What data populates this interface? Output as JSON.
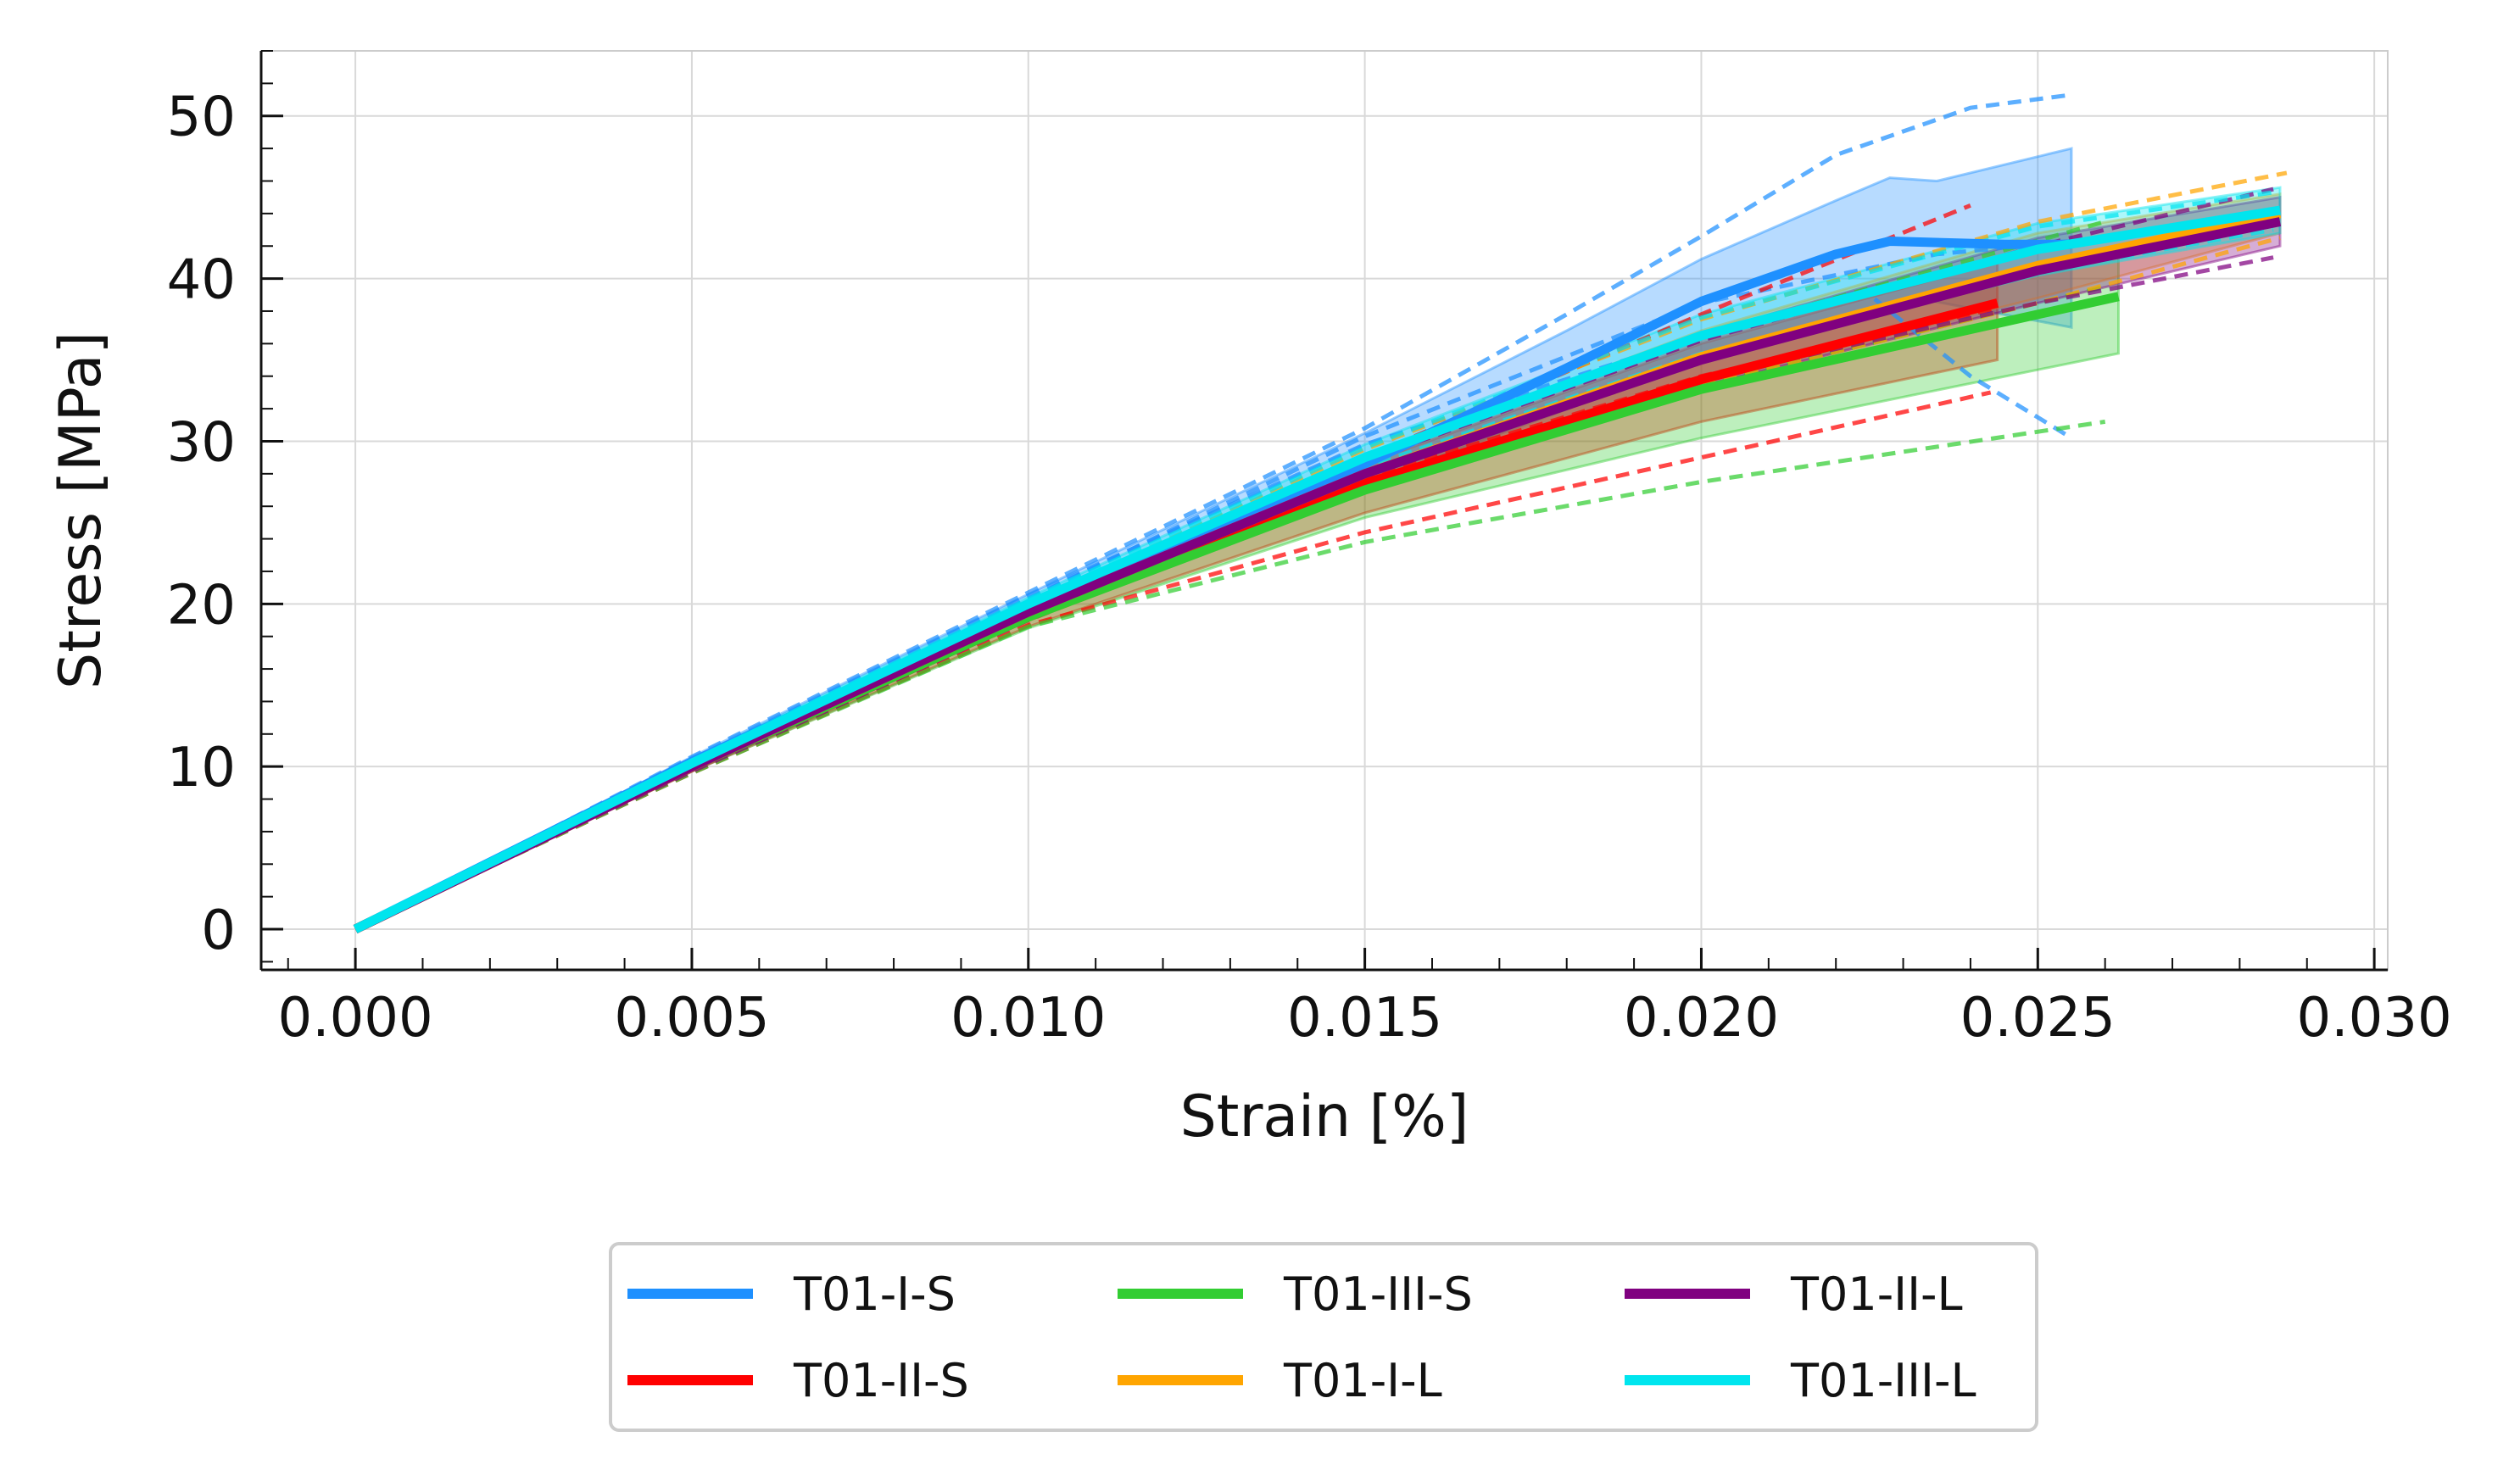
{
  "chart_data": {
    "type": "line",
    "title": "",
    "xlabel": "Strain [%]",
    "ylabel": "Stress [MPa]",
    "xlim": [
      -0.0014,
      0.0302
    ],
    "ylim": [
      -2.5,
      54
    ],
    "xticks": [
      "0.000",
      "0.005",
      "0.010",
      "0.015",
      "0.020",
      "0.025",
      "0.030"
    ],
    "yticks": [
      "0",
      "10",
      "20",
      "30",
      "40",
      "50"
    ],
    "grid": true,
    "legend_position": "bottom-center",
    "series": [
      {
        "name": "T01-I-S",
        "color": "#1e90ff",
        "mean": [
          [
            0,
            0
          ],
          [
            0.005,
            10.3
          ],
          [
            0.01,
            19.8
          ],
          [
            0.015,
            28.6
          ],
          [
            0.018,
            34.5
          ],
          [
            0.02,
            38.6
          ],
          [
            0.022,
            41.5
          ],
          [
            0.0228,
            42.3
          ],
          [
            0.0245,
            42.1
          ],
          [
            0.0255,
            42.1
          ]
        ],
        "band_upper": [
          [
            0,
            0
          ],
          [
            0.005,
            10.6
          ],
          [
            0.01,
            20.6
          ],
          [
            0.015,
            30.5
          ],
          [
            0.018,
            36.8
          ],
          [
            0.02,
            41.2
          ],
          [
            0.022,
            44.8
          ],
          [
            0.0228,
            46.2
          ],
          [
            0.0235,
            46.0
          ],
          [
            0.0255,
            48.0
          ]
        ],
        "band_lower": [
          [
            0,
            0
          ],
          [
            0.005,
            10.0
          ],
          [
            0.01,
            19.2
          ],
          [
            0.015,
            27.4
          ],
          [
            0.02,
            35.0
          ],
          [
            0.0232,
            38.8
          ],
          [
            0.0255,
            37.0
          ]
        ],
        "specimens": [
          [
            [
              0,
              0
            ],
            [
              0.005,
              10.6
            ],
            [
              0.01,
              20.7
            ],
            [
              0.015,
              30.8
            ],
            [
              0.018,
              37.8
            ],
            [
              0.02,
              42.6
            ],
            [
              0.022,
              47.6
            ],
            [
              0.024,
              50.5
            ],
            [
              0.0255,
              51.3
            ]
          ],
          [
            [
              0,
              0
            ],
            [
              0.005,
              10.4
            ],
            [
              0.01,
              20.5
            ],
            [
              0.015,
              29.8
            ],
            [
              0.02,
              36.5
            ],
            [
              0.0225,
              39.0
            ],
            [
              0.024,
              34.0
            ],
            [
              0.0255,
              30.2
            ]
          ],
          [
            [
              0,
              0
            ],
            [
              0.005,
              10.2
            ],
            [
              0.01,
              20.3
            ],
            [
              0.015,
              30.3
            ],
            [
              0.02,
              38.5
            ],
            [
              0.0235,
              41.5
            ],
            [
              0.0255,
              42.3
            ]
          ]
        ]
      },
      {
        "name": "T01-II-S",
        "color": "#ff0000",
        "mean": [
          [
            0,
            0
          ],
          [
            0.005,
            10.0
          ],
          [
            0.01,
            19.2
          ],
          [
            0.015,
            27.4
          ],
          [
            0.02,
            33.8
          ],
          [
            0.0244,
            38.5
          ]
        ],
        "band_upper": [
          [
            0,
            0
          ],
          [
            0.005,
            10.3
          ],
          [
            0.01,
            19.8
          ],
          [
            0.015,
            28.6
          ],
          [
            0.02,
            36.0
          ],
          [
            0.0244,
            41.0
          ]
        ],
        "band_lower": [
          [
            0,
            0
          ],
          [
            0.005,
            9.7
          ],
          [
            0.01,
            18.6
          ],
          [
            0.015,
            25.6
          ],
          [
            0.02,
            31.2
          ],
          [
            0.0244,
            35.0
          ]
        ],
        "specimens": [
          [
            [
              0,
              0
            ],
            [
              0.005,
              10.0
            ],
            [
              0.01,
              19.8
            ],
            [
              0.015,
              29.0
            ],
            [
              0.02,
              37.8
            ],
            [
              0.024,
              44.5
            ]
          ],
          [
            [
              0,
              0
            ],
            [
              0.005,
              9.6
            ],
            [
              0.01,
              18.7
            ],
            [
              0.015,
              24.4
            ],
            [
              0.02,
              29.0
            ],
            [
              0.0243,
              33.0
            ]
          ],
          [
            [
              0,
              0
            ],
            [
              0.005,
              9.8
            ],
            [
              0.01,
              19.2
            ],
            [
              0.015,
              27.8
            ],
            [
              0.02,
              34.0
            ],
            [
              0.0244,
              38.2
            ]
          ]
        ]
      },
      {
        "name": "T01-III-S",
        "color": "#32cd32",
        "mean": [
          [
            0,
            0
          ],
          [
            0.005,
            10.0
          ],
          [
            0.01,
            19.2
          ],
          [
            0.015,
            27.0
          ],
          [
            0.02,
            33.2
          ],
          [
            0.0262,
            38.9
          ]
        ],
        "band_upper": [
          [
            0,
            0
          ],
          [
            0.005,
            10.3
          ],
          [
            0.01,
            19.7
          ],
          [
            0.015,
            28.2
          ],
          [
            0.02,
            35.2
          ],
          [
            0.0262,
            41.5
          ]
        ],
        "band_lower": [
          [
            0,
            0
          ],
          [
            0.005,
            9.7
          ],
          [
            0.01,
            18.5
          ],
          [
            0.015,
            25.3
          ],
          [
            0.02,
            30.2
          ],
          [
            0.0262,
            35.4
          ]
        ],
        "specimens": [
          [
            [
              0,
              0
            ],
            [
              0.005,
              10.1
            ],
            [
              0.01,
              19.8
            ],
            [
              0.015,
              28.8
            ],
            [
              0.02,
              36.5
            ],
            [
              0.026,
              43.5
            ]
          ],
          [
            [
              0,
              0
            ],
            [
              0.005,
              9.6
            ],
            [
              0.01,
              18.6
            ],
            [
              0.015,
              23.8
            ],
            [
              0.02,
              27.5
            ],
            [
              0.026,
              31.2
            ]
          ],
          [
            [
              0,
              0
            ],
            [
              0.005,
              9.9
            ],
            [
              0.01,
              19.2
            ],
            [
              0.015,
              27.5
            ],
            [
              0.02,
              33.5
            ],
            [
              0.026,
              39.5
            ]
          ]
        ]
      },
      {
        "name": "T01-I-L",
        "color": "#ffa500",
        "mean": [
          [
            0,
            0
          ],
          [
            0.005,
            10.0
          ],
          [
            0.01,
            19.5
          ],
          [
            0.015,
            28.0
          ],
          [
            0.02,
            35.2
          ],
          [
            0.025,
            40.8
          ],
          [
            0.0286,
            44.0
          ]
        ],
        "band_upper": [
          [
            0,
            0
          ],
          [
            0.005,
            10.3
          ],
          [
            0.01,
            20.0
          ],
          [
            0.015,
            29.0
          ],
          [
            0.02,
            36.8
          ],
          [
            0.025,
            42.8
          ],
          [
            0.0286,
            45.2
          ]
        ],
        "band_lower": [
          [
            0,
            0
          ],
          [
            0.005,
            9.7
          ],
          [
            0.01,
            19.0
          ],
          [
            0.015,
            27.0
          ],
          [
            0.02,
            33.6
          ],
          [
            0.025,
            38.8
          ],
          [
            0.0286,
            42.8
          ]
        ],
        "specimens": [
          [
            [
              0,
              0
            ],
            [
              0.005,
              10.2
            ],
            [
              0.01,
              20.0
            ],
            [
              0.015,
              29.5
            ],
            [
              0.02,
              37.5
            ],
            [
              0.025,
              43.5
            ],
            [
              0.0287,
              46.5
            ]
          ],
          [
            [
              0,
              0
            ],
            [
              0.005,
              9.8
            ],
            [
              0.01,
              19.0
            ],
            [
              0.015,
              27.0
            ],
            [
              0.02,
              33.5
            ],
            [
              0.025,
              38.5
            ],
            [
              0.0286,
              42.5
            ]
          ]
        ]
      },
      {
        "name": "T01-II-L",
        "color": "#800080",
        "mean": [
          [
            0,
            0
          ],
          [
            0.005,
            10.0
          ],
          [
            0.01,
            19.5
          ],
          [
            0.015,
            28.0
          ],
          [
            0.02,
            35.0
          ],
          [
            0.025,
            40.5
          ],
          [
            0.0286,
            43.5
          ]
        ],
        "band_upper": [
          [
            0,
            0
          ],
          [
            0.005,
            10.3
          ],
          [
            0.01,
            20.0
          ],
          [
            0.015,
            29.0
          ],
          [
            0.02,
            36.6
          ],
          [
            0.025,
            42.5
          ],
          [
            0.0286,
            45.0
          ]
        ],
        "band_lower": [
          [
            0,
            0
          ],
          [
            0.005,
            9.7
          ],
          [
            0.01,
            19.0
          ],
          [
            0.015,
            27.0
          ],
          [
            0.02,
            33.4
          ],
          [
            0.025,
            38.5
          ],
          [
            0.0286,
            42.0
          ]
        ],
        "specimens": [
          [
            [
              0,
              0
            ],
            [
              0.005,
              10.1
            ],
            [
              0.01,
              19.8
            ],
            [
              0.015,
              28.8
            ],
            [
              0.02,
              36.2
            ],
            [
              0.025,
              42.0
            ],
            [
              0.0285,
              45.5
            ]
          ],
          [
            [
              0,
              0
            ],
            [
              0.005,
              9.7
            ],
            [
              0.01,
              19.0
            ],
            [
              0.015,
              27.2
            ],
            [
              0.02,
              33.8
            ],
            [
              0.025,
              38.5
            ],
            [
              0.0285,
              41.3
            ]
          ]
        ]
      },
      {
        "name": "T01-III-L",
        "color": "#00e5ee",
        "mean": [
          [
            0,
            0
          ],
          [
            0.005,
            10.2
          ],
          [
            0.01,
            20.0
          ],
          [
            0.015,
            29.0
          ],
          [
            0.02,
            36.5
          ],
          [
            0.025,
            41.8
          ],
          [
            0.0286,
            44.2
          ]
        ],
        "band_upper": [
          [
            0,
            0
          ],
          [
            0.005,
            10.5
          ],
          [
            0.01,
            20.4
          ],
          [
            0.015,
            29.8
          ],
          [
            0.02,
            37.8
          ],
          [
            0.025,
            43.4
          ],
          [
            0.0286,
            45.6
          ]
        ],
        "band_lower": [
          [
            0,
            0
          ],
          [
            0.005,
            9.9
          ],
          [
            0.01,
            19.6
          ],
          [
            0.015,
            28.2
          ],
          [
            0.02,
            35.2
          ],
          [
            0.025,
            40.2
          ],
          [
            0.0286,
            42.8
          ]
        ],
        "specimens": [
          [
            [
              0,
              0
            ],
            [
              0.005,
              10.4
            ],
            [
              0.01,
              20.3
            ],
            [
              0.015,
              29.6
            ],
            [
              0.02,
              37.6
            ],
            [
              0.025,
              43.2
            ],
            [
              0.0285,
              45.3
            ]
          ],
          [
            [
              0,
              0
            ],
            [
              0.005,
              10.0
            ],
            [
              0.01,
              19.7
            ],
            [
              0.015,
              28.4
            ],
            [
              0.02,
              35.4
            ],
            [
              0.025,
              40.4
            ],
            [
              0.0285,
              43.0
            ]
          ]
        ]
      }
    ]
  }
}
